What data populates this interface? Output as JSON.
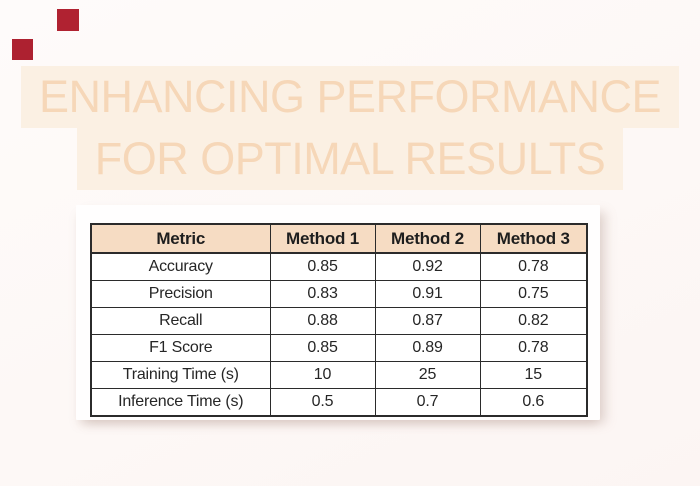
{
  "page": {
    "background": "#fdf8f7"
  },
  "decor": {
    "squares": [
      {
        "name": "decor-square-top",
        "color": "#b02231"
      },
      {
        "name": "decor-square-bottom",
        "color": "#ad2130"
      }
    ]
  },
  "title": {
    "line1": "ENHANCING PERFORMANCE",
    "line2": "FOR OPTIMAL RESULTS",
    "text_color": "#f6d7b8",
    "highlight_color": "#fbf0e3"
  },
  "table": {
    "headers": [
      "Metric",
      "Method 1",
      "Method 2",
      "Method 3"
    ],
    "rows": [
      [
        "Accuracy",
        "0.85",
        "0.92",
        "0.78"
      ],
      [
        "Precision",
        "0.83",
        "0.91",
        "0.75"
      ],
      [
        "Recall",
        "0.88",
        "0.87",
        "0.82"
      ],
      [
        "F1 Score",
        "0.85",
        "0.89",
        "0.78"
      ],
      [
        "Training Time (s)",
        "10",
        "25",
        "15"
      ],
      [
        "Inference Time (s)",
        "0.5",
        "0.7",
        "0.6"
      ]
    ],
    "header_bg": "#f6dcc3",
    "border_color": "#2b2b2b",
    "card_bg": "#fffefe"
  },
  "chart_data": {
    "type": "table",
    "title": "ENHANCING PERFORMANCE FOR OPTIMAL RESULTS",
    "columns": [
      "Metric",
      "Method 1",
      "Method 2",
      "Method 3"
    ],
    "rows": [
      [
        "Accuracy",
        0.85,
        0.92,
        0.78
      ],
      [
        "Precision",
        0.83,
        0.91,
        0.75
      ],
      [
        "Recall",
        0.88,
        0.87,
        0.82
      ],
      [
        "F1 Score",
        0.85,
        0.89,
        0.78
      ],
      [
        "Training Time (s)",
        10,
        25,
        15
      ],
      [
        "Inference Time (s)",
        0.5,
        0.7,
        0.6
      ]
    ],
    "layout_hints": {
      "header_background": "#f6dcc3",
      "grid": "on",
      "all_cells_centered": true
    }
  }
}
